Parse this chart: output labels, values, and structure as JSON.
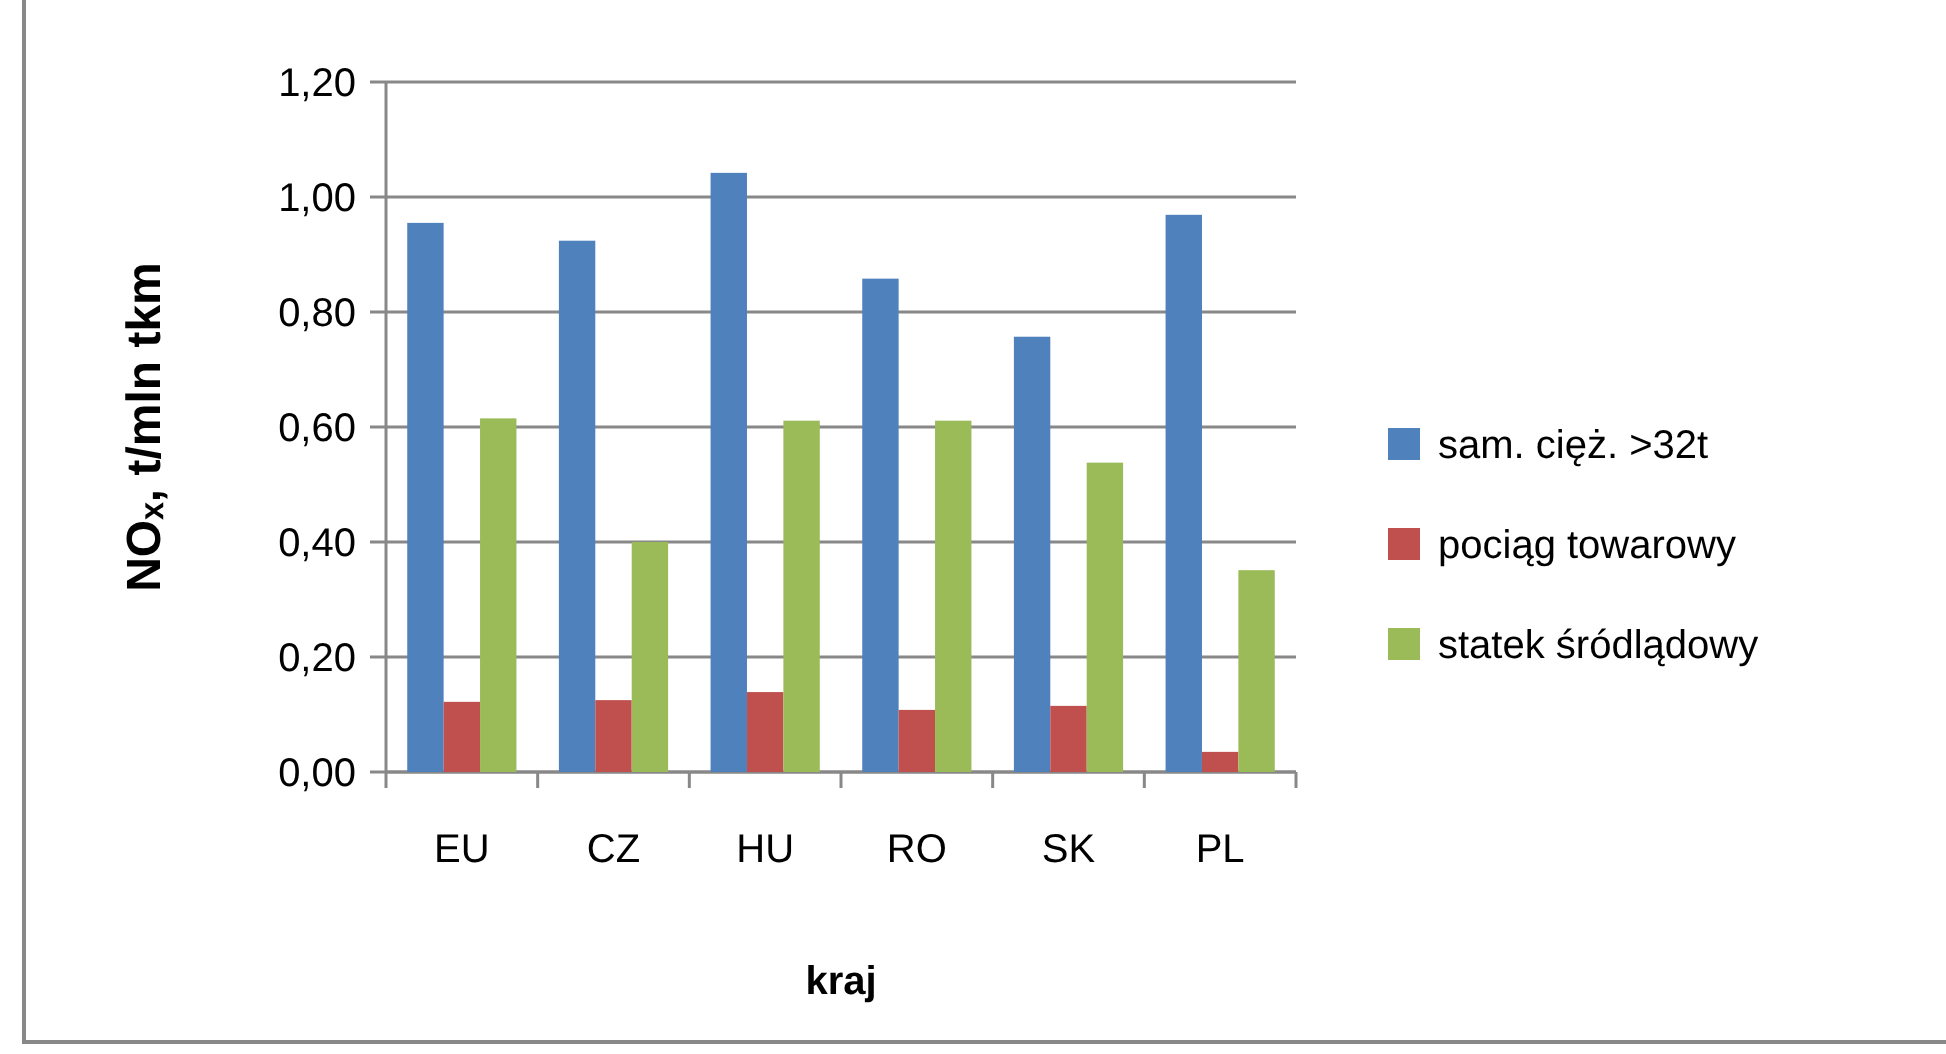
{
  "chart_data": {
    "type": "bar",
    "xlabel": "kraj",
    "ylabel": "NOₓ, t/mln tkm",
    "categories": [
      "EU",
      "CZ",
      "HU",
      "RO",
      "SK",
      "PL"
    ],
    "series": [
      {
        "name": "sam. cięż. >32t",
        "color": "#4f81bd",
        "values": [
          0.955,
          0.924,
          1.042,
          0.858,
          0.757,
          0.969
        ]
      },
      {
        "name": "pociąg towarowy",
        "color": "#c0504d",
        "values": [
          0.122,
          0.125,
          0.139,
          0.108,
          0.115,
          0.035
        ]
      },
      {
        "name": "statek śródlądowy",
        "color": "#9bbb59",
        "values": [
          0.615,
          0.4,
          0.611,
          0.611,
          0.538,
          0.351
        ]
      }
    ],
    "ylim": [
      0,
      1.2
    ],
    "yticks": [
      {
        "value": 0,
        "label": "0,00"
      },
      {
        "value": 0.2,
        "label": "0,20"
      },
      {
        "value": 0.4,
        "label": "0,40"
      },
      {
        "value": 0.6,
        "label": "0,60"
      },
      {
        "value": 0.8,
        "label": "0,80"
      },
      {
        "value": 1,
        "label": "1,00"
      },
      {
        "value": 1.2,
        "label": "1,20"
      }
    ],
    "grid": "y",
    "legend": "right"
  }
}
